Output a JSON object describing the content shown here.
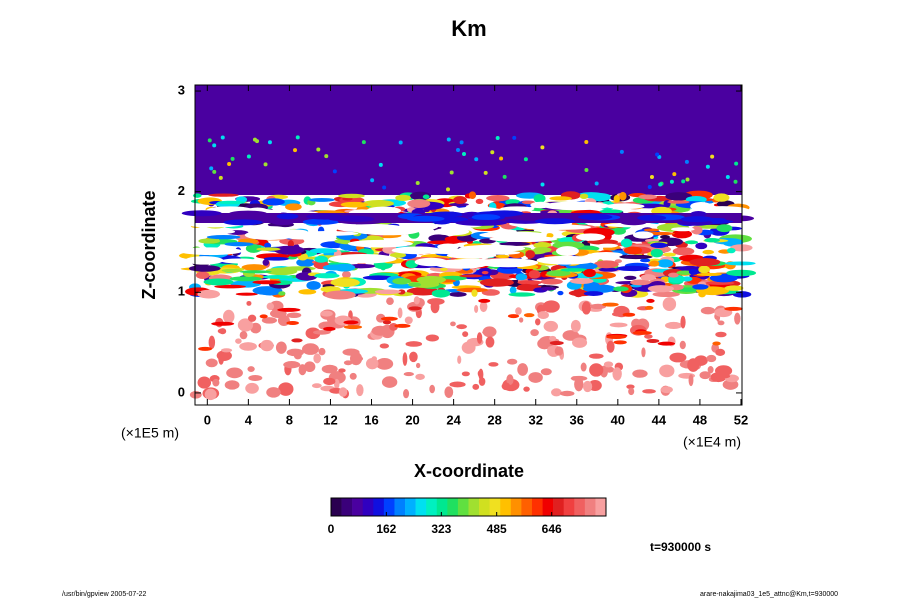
{
  "chart_data": {
    "type": "contour",
    "title": "Km",
    "x_label": "X-coordinate",
    "y_label": "Z-coordinate",
    "x_unit": "(×1E4 m)",
    "y_unit": "(×1E5 m)",
    "xlim": [
      -1.2,
      52.1
    ],
    "xticks": [
      0,
      4,
      8,
      12,
      16,
      20,
      24,
      28,
      32,
      36,
      40,
      44,
      48,
      52
    ],
    "ylim": [
      -0.12,
      3.06
    ],
    "yticks": [
      0,
      1,
      2,
      3
    ],
    "colorbar": {
      "lim": [
        0,
        805
      ],
      "ticks": [
        0,
        162,
        323,
        485,
        646
      ],
      "colors": [
        "#2a0050",
        "#3a007a",
        "#4a00a0",
        "#3000c0",
        "#1010e0",
        "#0040ff",
        "#0080ff",
        "#00b0ff",
        "#00e0f0",
        "#00f0c0",
        "#00e890",
        "#20e060",
        "#60e040",
        "#a0e030",
        "#d0e020",
        "#f0e020",
        "#ffc000",
        "#ff9000",
        "#ff6000",
        "#ff3000",
        "#f00000",
        "#e02020",
        "#f04040",
        "#f06060",
        "#f08080",
        "#f8a0a0"
      ]
    },
    "time_label": "t=930000 s",
    "footer_left": "/usr/bin/gpview 2005-07-22",
    "footer_right": "arare-nakajima03_1e5_attnc@Km,t=930000"
  }
}
